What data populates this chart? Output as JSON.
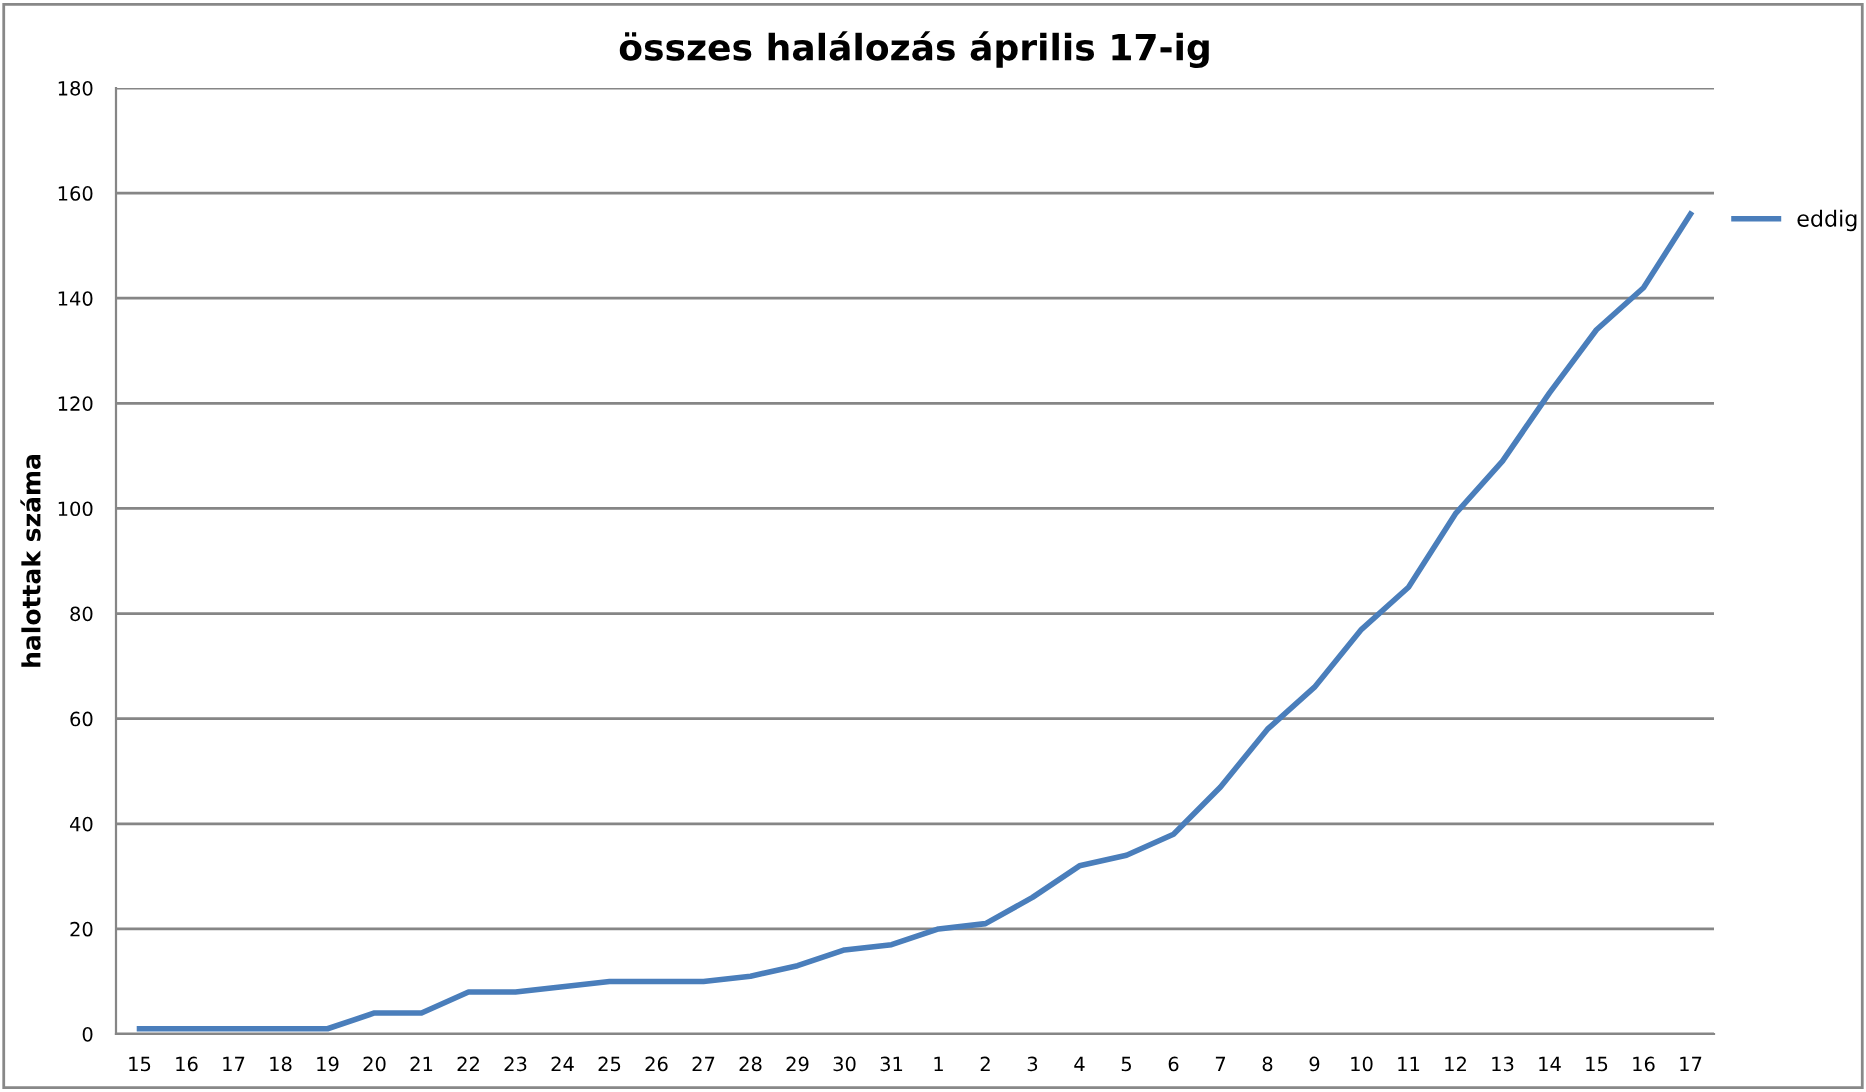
{
  "chart_data": {
    "type": "line",
    "title": "összes halálozás április 17-ig",
    "ylabel": "halottak száma",
    "categories": [
      "15",
      "16",
      "17",
      "18",
      "19",
      "20",
      "21",
      "22",
      "23",
      "24",
      "25",
      "26",
      "27",
      "28",
      "29",
      "30",
      "31",
      "1",
      "2",
      "3",
      "4",
      "5",
      "6",
      "7",
      "8",
      "9",
      "10",
      "11",
      "12",
      "13",
      "14",
      "15",
      "16",
      "17"
    ],
    "series": [
      {
        "name": "eddig",
        "color": "#4a7ebb",
        "values": [
          1,
          1,
          1,
          1,
          1,
          4,
          4,
          8,
          8,
          9,
          10,
          10,
          10,
          11,
          13,
          16,
          17,
          20,
          21,
          26,
          32,
          34,
          38,
          47,
          58,
          66,
          77,
          85,
          99,
          109,
          122,
          134,
          142,
          156
        ]
      }
    ],
    "ylim": [
      0,
      180
    ],
    "yticks": [
      0,
      20,
      40,
      60,
      80,
      100,
      120,
      140,
      160,
      180
    ],
    "grid": "y",
    "legend": "right",
    "marker": "none",
    "line_style": "solid"
  }
}
